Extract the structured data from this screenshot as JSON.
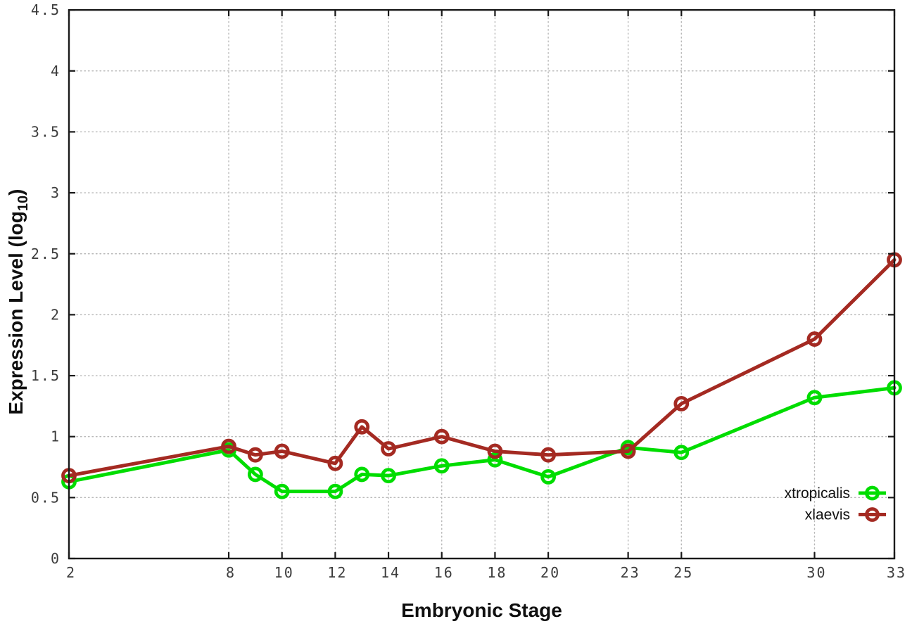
{
  "chart_data": {
    "type": "line",
    "title": "",
    "xlabel": "Embryonic Stage",
    "ylabel": "Expression Level (log10)",
    "ylabel_rich": {
      "prefix": "Expression Level (log",
      "subscript": "10",
      "suffix": ")"
    },
    "x": [
      2,
      8,
      9,
      10,
      12,
      13,
      14,
      16,
      18,
      20,
      23,
      25,
      30,
      33
    ],
    "xlim": [
      2,
      33
    ],
    "ylim": [
      0,
      4.5
    ],
    "xticks": [
      2,
      8,
      10,
      12,
      14,
      16,
      18,
      20,
      23,
      25,
      30,
      33
    ],
    "yticks": [
      0,
      0.5,
      1,
      1.5,
      2,
      2.5,
      3,
      3.5,
      4,
      4.5
    ],
    "grid": true,
    "legend_position": "inside-right-lower",
    "series": [
      {
        "name": "xtropicalis",
        "color": "#00dd00",
        "marker": "open-circle",
        "values": [
          0.63,
          0.89,
          0.69,
          0.55,
          0.55,
          0.69,
          0.68,
          0.76,
          0.81,
          0.67,
          0.91,
          0.87,
          1.32,
          1.4
        ]
      },
      {
        "name": "xlaevis",
        "color": "#a42a22",
        "marker": "open-circle",
        "values": [
          0.68,
          0.92,
          0.85,
          0.88,
          0.78,
          1.08,
          0.9,
          1.0,
          0.88,
          0.85,
          0.88,
          1.27,
          1.8,
          2.45
        ]
      }
    ]
  },
  "styles": {
    "background": "#ffffff",
    "grid_color": "#b8b8b8",
    "axis_color": "#1a1a1a",
    "tick_label_color": "#3c3c3c"
  }
}
